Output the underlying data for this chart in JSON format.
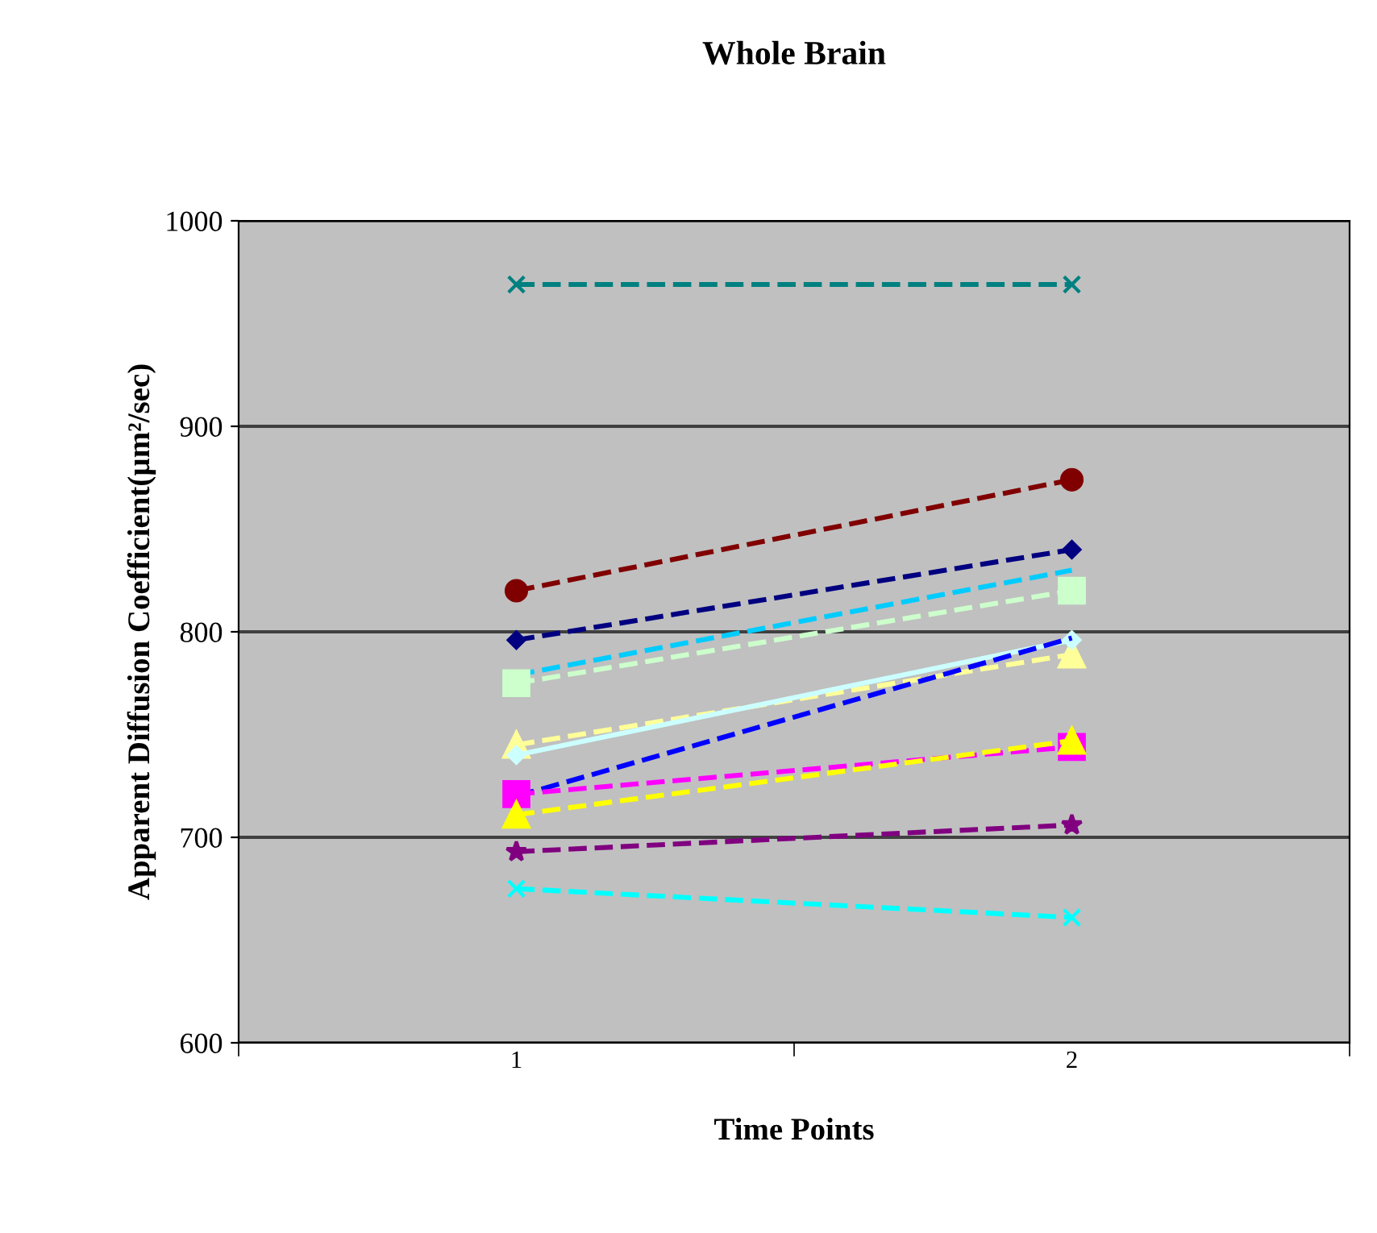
{
  "chart_data": {
    "type": "line",
    "title": "Whole Brain",
    "xlabel": "Time Points",
    "ylabel": "Apparent Diffusion Coefficient(µm²/sec)",
    "categories": [
      "1",
      "2"
    ],
    "ylim": [
      600,
      1000
    ],
    "yticks": [
      600,
      700,
      800,
      900,
      1000
    ],
    "grid": "y",
    "legend": false,
    "series": [
      {
        "color": "#008080",
        "values": [
          969,
          969
        ],
        "marker": "cross",
        "line_style": "dashed"
      },
      {
        "color": "#800000",
        "values": [
          820,
          874
        ],
        "marker": "circle",
        "line_style": "dashed"
      },
      {
        "color": "#000080",
        "values": [
          796,
          840
        ],
        "marker": "diamond",
        "line_style": "dashed"
      },
      {
        "color": "#00ccff",
        "values": [
          779,
          830
        ],
        "marker": "none",
        "line_style": "dashed"
      },
      {
        "color": "#ccffcc",
        "values": [
          775,
          820
        ],
        "marker": "square",
        "line_style": "dashed"
      },
      {
        "color": "#ffff99",
        "values": [
          745,
          789
        ],
        "marker": "triangle",
        "line_style": "dashed"
      },
      {
        "color": "#ccffff",
        "values": [
          740,
          796
        ],
        "marker": "diamond",
        "line_style": "solid"
      },
      {
        "color": "#0000ff",
        "values": [
          720,
          797
        ],
        "marker": "none",
        "line_style": "dashed"
      },
      {
        "color": "#ff00ff",
        "values": [
          721,
          744
        ],
        "marker": "square",
        "line_style": "dashed"
      },
      {
        "color": "#ffff00",
        "values": [
          711,
          747
        ],
        "marker": "triangle",
        "line_style": "dashed"
      },
      {
        "color": "#800080",
        "values": [
          693,
          706
        ],
        "marker": "star",
        "line_style": "dashed"
      },
      {
        "color": "#00ffff",
        "values": [
          675,
          661
        ],
        "marker": "cross",
        "line_style": "dashed"
      }
    ]
  }
}
